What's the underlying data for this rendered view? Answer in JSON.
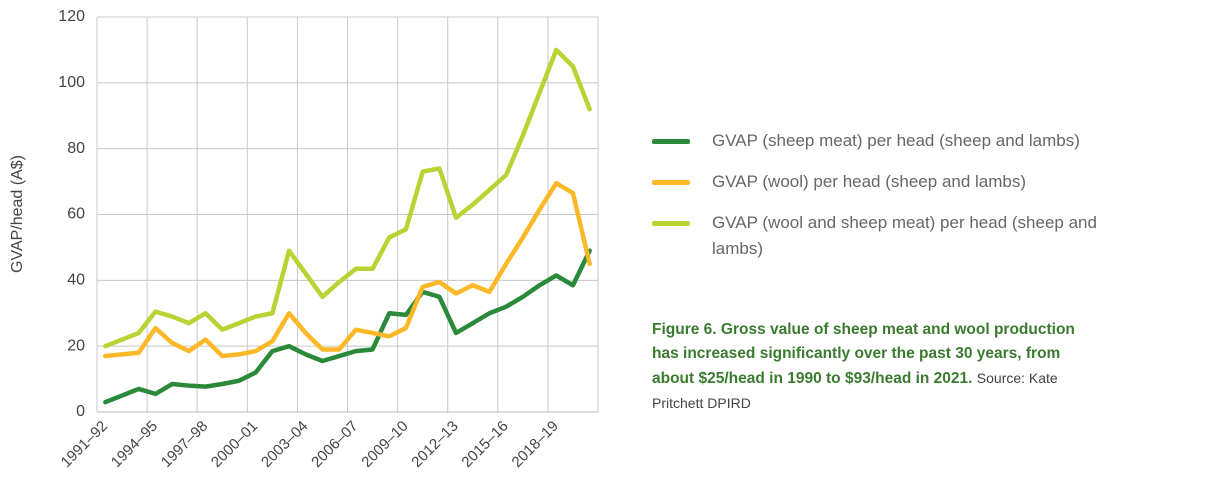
{
  "chart_data": {
    "type": "line",
    "y_label": "GVAP/head (A$)",
    "categories": [
      "1991–92",
      null,
      null,
      "1994–95",
      null,
      null,
      "1997–98",
      null,
      null,
      "2000–01",
      null,
      null,
      "2003–04",
      null,
      null,
      "2006–07",
      null,
      null,
      "2009–10",
      null,
      null,
      "2012–13",
      null,
      null,
      "2015–16",
      null,
      null,
      "2018–19",
      null,
      null
    ],
    "series": [
      {
        "name": "GVAP (sheep meat) per head (sheep and lambs)",
        "color": "#2a8a3a",
        "values": [
          3,
          5,
          7,
          5.5,
          8.5,
          8,
          7.7,
          8.5,
          9.5,
          12,
          18.5,
          20,
          17.5,
          15.5,
          17,
          18.5,
          19,
          30,
          29.5,
          36.5,
          35,
          24,
          27,
          30,
          32,
          35,
          38.5,
          41.5,
          38.5,
          49
        ]
      },
      {
        "name": "GVAP (wool) per head (sheep and lambs)",
        "color": "#fcb827",
        "values": [
          17,
          17.5,
          18,
          25.5,
          21,
          18.5,
          22,
          17,
          17.5,
          18.5,
          21.5,
          30,
          24,
          19,
          19,
          25,
          24,
          23,
          25.5,
          38,
          39.5,
          36,
          38.5,
          36.5,
          45,
          53,
          61.5,
          69.5,
          66.5,
          45
        ]
      },
      {
        "name": "GVAP (wool and sheep meat) per head (sheep and lambs)",
        "color": "#b7d433",
        "values": [
          20,
          22,
          24,
          30.5,
          29,
          27,
          30,
          25,
          27,
          29,
          30,
          49,
          42,
          35,
          39.5,
          43.5,
          43.5,
          53,
          55.5,
          73,
          74,
          59,
          63,
          67.5,
          72,
          84,
          97,
          110,
          105,
          92
        ]
      }
    ],
    "ylim": [
      0,
      120
    ],
    "yticks": [
      0,
      20,
      40,
      60,
      80,
      100,
      120
    ],
    "grid": true,
    "legend_position": "right",
    "caption": "Figure 6. Gross value of sheep meat and wool production has increased significantly over the past 30 years, from about $25/head in 1990 to $93/head in 2021.",
    "source": "Source: Kate Pritchett DPIRD"
  }
}
